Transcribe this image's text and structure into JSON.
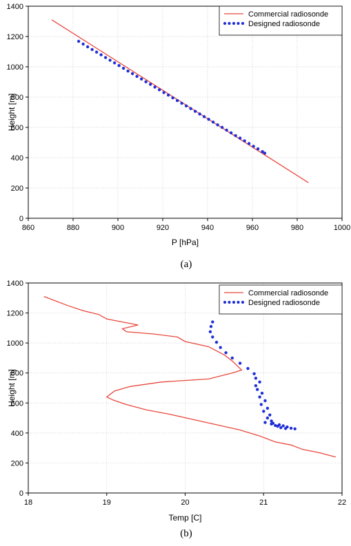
{
  "chart_data": [
    {
      "type": "line",
      "caption": "(a)",
      "xlabel": "P [hPa]",
      "ylabel": "Height [m]",
      "xlim": [
        860,
        1000
      ],
      "ylim": [
        0,
        1400
      ],
      "xticks": [
        860,
        880,
        900,
        920,
        940,
        960,
        980,
        1000
      ],
      "yticks": [
        0,
        200,
        400,
        600,
        800,
        1000,
        1200,
        1400
      ],
      "grid": true,
      "legend_position": "top-right",
      "series": [
        {
          "name": "Commercial radiosonde",
          "style": "line",
          "color": "#e8473c",
          "x": [
            870.5,
            985
          ],
          "y": [
            1310,
            235
          ]
        },
        {
          "name": "Designed radiosonde",
          "style": "dots",
          "color": "#1f2fd6",
          "x": [
            882.5,
            884.5,
            886.5,
            888.5,
            890.5,
            892.5,
            894.5,
            896.5,
            898.5,
            900.5,
            902.5,
            904.5,
            906.5,
            908.5,
            910.5,
            912.5,
            914.5,
            916.5,
            918.5,
            920.5,
            922.5,
            924.5,
            926.5,
            928.5,
            930.5,
            932.5,
            934.5,
            936.5,
            938.5,
            940.5,
            942.5,
            944.5,
            946.5,
            948.5,
            950.5,
            952.5,
            954.5,
            956.5,
            958.5,
            960.5,
            962.5,
            964.5,
            965.5
          ],
          "y": [
            1168,
            1150,
            1132,
            1114,
            1097,
            1079,
            1061,
            1043,
            1026,
            1008,
            990,
            972,
            955,
            937,
            919,
            901,
            884,
            866,
            848,
            830,
            813,
            795,
            777,
            759,
            742,
            724,
            706,
            688,
            671,
            653,
            635,
            617,
            600,
            582,
            564,
            546,
            529,
            511,
            493,
            475,
            458,
            440,
            430
          ]
        }
      ]
    },
    {
      "type": "line",
      "caption": "(b)",
      "xlabel": "Temp [C]",
      "ylabel": "Height [m]",
      "xlim": [
        18,
        22
      ],
      "ylim": [
        0,
        1400
      ],
      "xticks": [
        18,
        19,
        20,
        21,
        22
      ],
      "yticks": [
        0,
        200,
        400,
        600,
        800,
        1000,
        1200,
        1400
      ],
      "grid": true,
      "legend_position": "top-right",
      "series": [
        {
          "name": "Commercial radiosonde",
          "style": "line",
          "color": "#e8473c",
          "x": [
            18.2,
            18.5,
            18.7,
            18.9,
            19.0,
            19.2,
            19.4,
            19.2,
            19.25,
            19.6,
            19.9,
            20.0,
            20.3,
            20.5,
            20.6,
            20.72,
            20.6,
            20.3,
            19.7,
            19.3,
            19.1,
            19.05,
            19.0,
            19.08,
            19.25,
            19.5,
            19.8,
            20.1,
            20.4,
            20.7,
            20.95,
            21.15,
            21.35,
            21.5,
            21.7,
            21.92
          ],
          "y": [
            1310,
            1250,
            1215,
            1190,
            1160,
            1140,
            1120,
            1095,
            1075,
            1060,
            1040,
            1010,
            975,
            920,
            880,
            820,
            800,
            760,
            740,
            710,
            680,
            660,
            640,
            620,
            590,
            555,
            525,
            490,
            455,
            420,
            380,
            340,
            320,
            290,
            270,
            240
          ]
        },
        {
          "name": "Designed radiosonde",
          "style": "dots",
          "color": "#1f2fd6",
          "x": [
            20.35,
            20.33,
            20.32,
            20.35,
            20.4,
            20.45,
            20.52,
            20.6,
            20.7,
            20.8,
            20.88,
            20.9,
            20.95,
            20.9,
            20.92,
            20.98,
            20.95,
            21.02,
            20.97,
            21.05,
            21.0,
            21.08,
            21.05,
            21.1,
            21.02,
            21.12,
            21.1,
            21.2,
            21.15,
            21.25,
            21.18,
            21.3,
            21.22,
            21.35,
            21.28,
            21.4
          ],
          "y": [
            1140,
            1110,
            1075,
            1040,
            1005,
            970,
            935,
            900,
            865,
            830,
            795,
            765,
            740,
            715,
            690,
            665,
            640,
            615,
            590,
            565,
            545,
            520,
            500,
            480,
            470,
            465,
            460,
            455,
            450,
            448,
            445,
            440,
            435,
            432,
            430,
            428
          ]
        }
      ]
    }
  ]
}
